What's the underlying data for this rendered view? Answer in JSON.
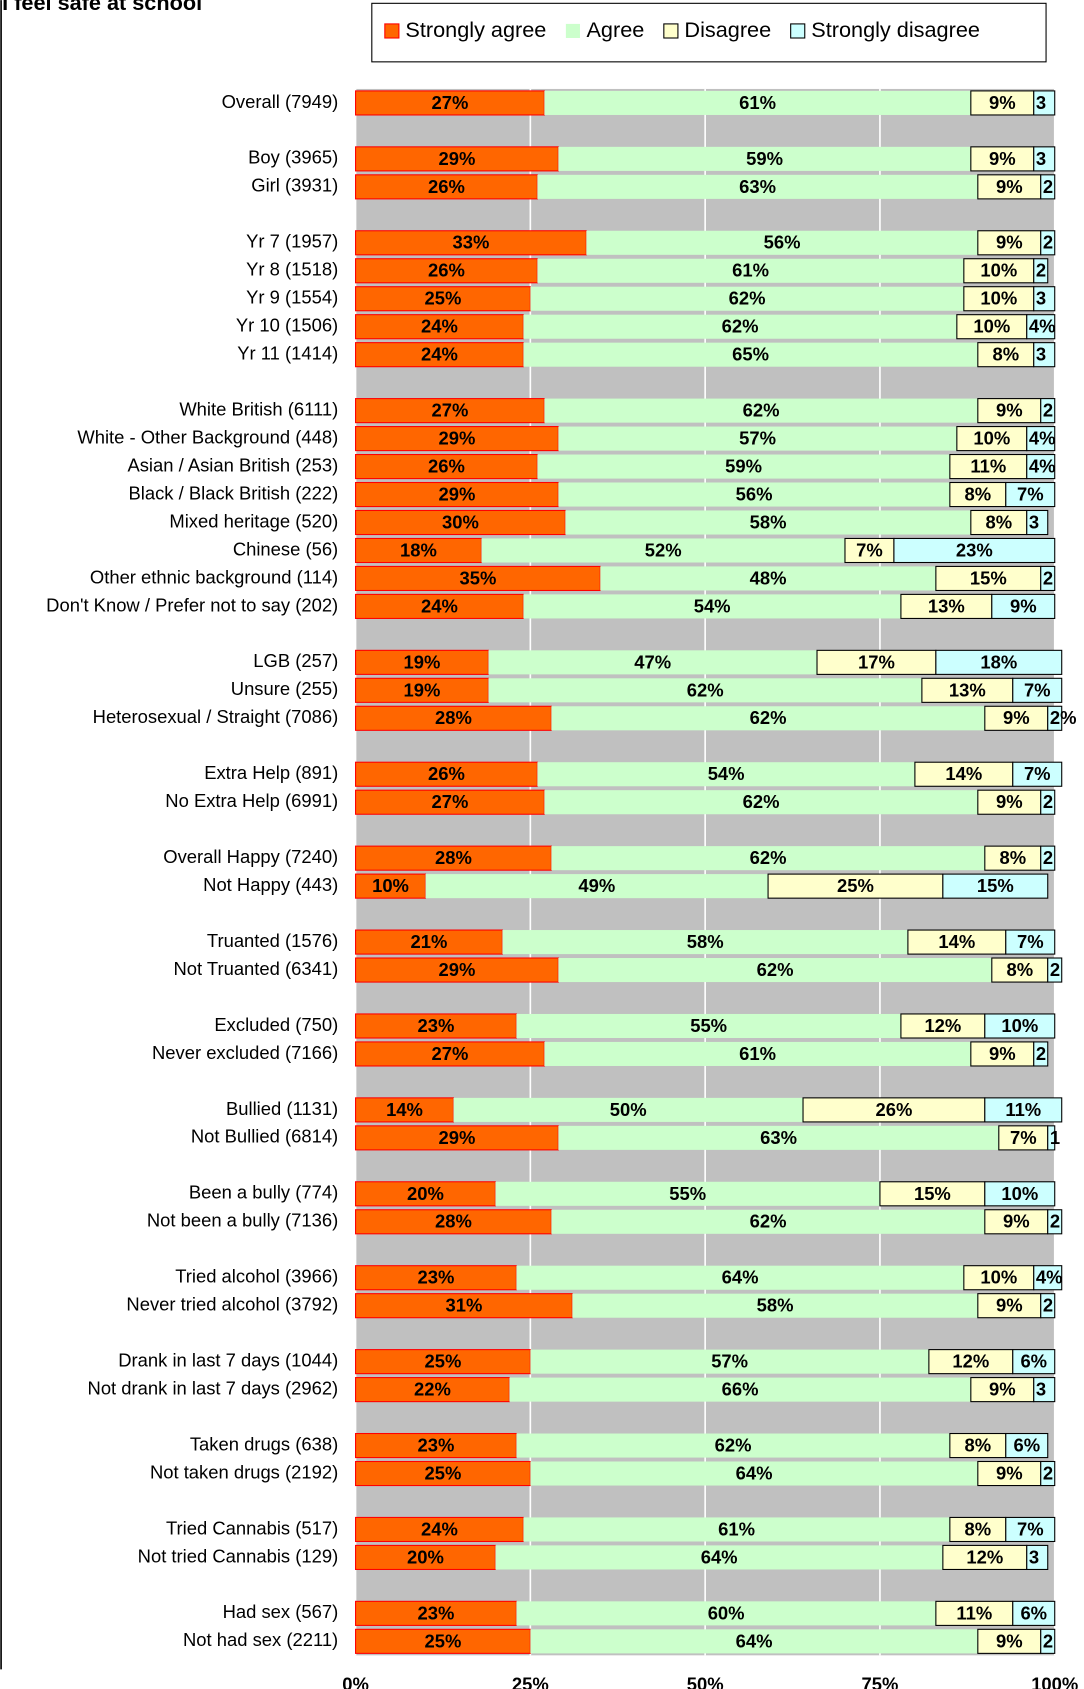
{
  "chart_data": {
    "type": "stacked-bar-horizontal",
    "title": "I feel safe at school",
    "categories": [
      "Overall (7949)",
      null,
      "Boy (3965)",
      "Girl (3931)",
      null,
      "Yr 7 (1957)",
      "Yr 8 (1518)",
      "Yr 9 (1554)",
      "Yr 10 (1506)",
      "Yr 11 (1414)",
      null,
      "White British (6111)",
      "White - Other Background (448)",
      "Asian / Asian British (253)",
      "Black / Black British (222)",
      "Mixed heritage (520)",
      "Chinese (56)",
      "Other ethnic background (114)",
      "Don't Know  / Prefer not to say (202)",
      null,
      "LGB (257)",
      "Unsure (255)",
      "Heterosexual / Straight (7086)",
      null,
      "Extra Help (891)",
      "No Extra Help (6991)",
      null,
      "Overall Happy (7240)",
      "Not Happy (443)",
      null,
      "Truanted (1576)",
      "Not Truanted (6341)",
      null,
      "Excluded (750)",
      "Never excluded (7166)",
      null,
      "Bullied (1131)",
      "Not Bullied (6814)",
      null,
      "Been a bully (774)",
      "Not been a bully (7136)",
      null,
      "Tried alcohol (3966)",
      "Never tried alcohol (3792)",
      null,
      "Drank in last 7 days (1044)",
      "Not drank in last 7 days (2962)",
      null,
      "Taken drugs (638)",
      "Not taken drugs (2192)",
      null,
      "Tried Cannabis (517)",
      "Not tried Cannabis (129)",
      null,
      "Had sex (567)",
      "Not had sex (2211)"
    ],
    "series": [
      {
        "name": "Strongly agree",
        "color": "#ff6600",
        "values": [
          27,
          null,
          29,
          26,
          null,
          33,
          26,
          25,
          24,
          24,
          null,
          27,
          29,
          26,
          29,
          30,
          18,
          35,
          24,
          null,
          19,
          19,
          28,
          null,
          26,
          27,
          null,
          28,
          10,
          null,
          21,
          29,
          null,
          23,
          27,
          null,
          14,
          29,
          null,
          20,
          28,
          null,
          23,
          31,
          null,
          25,
          22,
          null,
          23,
          25,
          null,
          24,
          20,
          null,
          23,
          25
        ],
        "value_labels": [
          "27%",
          null,
          "29%",
          "26%",
          null,
          "33%",
          "26%",
          "25%",
          "24%",
          "24%",
          null,
          "27%",
          "29%",
          "26%",
          "29%",
          "30%",
          "18%",
          "35%",
          "24%",
          null,
          "19%",
          "19%",
          "28%",
          null,
          "26%",
          "27%",
          null,
          "28%",
          "10%",
          null,
          "21%",
          "29%",
          null,
          "23%",
          "27%",
          null,
          "14%",
          "29%",
          null,
          "20%",
          "28%",
          null,
          "23%",
          "31%",
          null,
          "25%",
          "22%",
          null,
          "23%",
          "25%",
          null,
          "24%",
          "20%",
          null,
          "23%",
          "25%"
        ]
      },
      {
        "name": "Agree",
        "color": "#ccffcc",
        "values": [
          61,
          null,
          59,
          63,
          null,
          56,
          61,
          62,
          62,
          65,
          null,
          62,
          57,
          59,
          56,
          58,
          52,
          48,
          54,
          null,
          47,
          62,
          62,
          null,
          54,
          62,
          null,
          62,
          49,
          null,
          58,
          62,
          null,
          55,
          61,
          null,
          50,
          63,
          null,
          55,
          62,
          null,
          64,
          58,
          null,
          57,
          66,
          null,
          62,
          64,
          null,
          61,
          64,
          null,
          60,
          64
        ],
        "value_labels": [
          "61%",
          null,
          "59%",
          "63%",
          null,
          "56%",
          "61%",
          "62%",
          "62%",
          "65%",
          null,
          "62%",
          "57%",
          "59%",
          "56%",
          "58%",
          "52%",
          "48%",
          "54%",
          null,
          "47%",
          "62%",
          "62%",
          null,
          "54%",
          "62%",
          null,
          "62%",
          "49%",
          null,
          "58%",
          "62%",
          null,
          "55%",
          "61%",
          null,
          "50%",
          "63%",
          null,
          "55%",
          "62%",
          null,
          "64%",
          "58%",
          null,
          "57%",
          "66%",
          null,
          "62%",
          "64%",
          null,
          "61%",
          "64%",
          null,
          "60%",
          "64%"
        ]
      },
      {
        "name": "Disagree",
        "color": "#ffffcc",
        "values": [
          9,
          null,
          9,
          9,
          null,
          9,
          10,
          10,
          10,
          8,
          null,
          9,
          10,
          11,
          8,
          8,
          7,
          15,
          13,
          null,
          17,
          13,
          9,
          null,
          14,
          9,
          null,
          8,
          25,
          null,
          14,
          8,
          null,
          12,
          9,
          null,
          26,
          7,
          null,
          15,
          9,
          null,
          10,
          9,
          null,
          12,
          9,
          null,
          8,
          9,
          null,
          8,
          12,
          null,
          11,
          9
        ],
        "value_labels": [
          "9%",
          null,
          "9%",
          "9%",
          null,
          "9%",
          "10%",
          "10%",
          "10%",
          "8%",
          null,
          "9%",
          "10%",
          "11%",
          "8%",
          "8%",
          "7%",
          "15%",
          "13%",
          null,
          "17%",
          "13%",
          "9%",
          null,
          "14%",
          "9%",
          null,
          "8%",
          "25%",
          null,
          "14%",
          "8%",
          null,
          "12%",
          "9%",
          null,
          "26%",
          "7%",
          null,
          "15%",
          "9%",
          null,
          "10%",
          "9%",
          null,
          "12%",
          "9%",
          null,
          "8%",
          "9%",
          null,
          "8%",
          "12%",
          null,
          "11%",
          "9%"
        ]
      },
      {
        "name": "Strongly disagree",
        "color": "#ccffff",
        "values": [
          3,
          null,
          3,
          2,
          null,
          2,
          2,
          3,
          4,
          3,
          null,
          2,
          4,
          4,
          7,
          3,
          23,
          2,
          9,
          null,
          18,
          7,
          2,
          null,
          7,
          2,
          null,
          2,
          15,
          null,
          7,
          2,
          null,
          10,
          2,
          null,
          11,
          1,
          null,
          10,
          2,
          null,
          4,
          2,
          null,
          6,
          3,
          null,
          6,
          2,
          null,
          7,
          3,
          null,
          6,
          2
        ],
        "value_labels": [
          "3",
          null,
          "3",
          "2",
          null,
          "2",
          "2",
          "3",
          "4%",
          "3",
          null,
          "2",
          "4%",
          "4%",
          "7%",
          "3",
          "23%",
          "2",
          "9%",
          null,
          "18%",
          "7%",
          "2%",
          null,
          "7%",
          "2",
          null,
          "2",
          "15%",
          null,
          "7%",
          "2",
          null,
          "10%",
          "2",
          null,
          "11%",
          "1",
          null,
          "10%",
          "2",
          null,
          "4%",
          "2",
          null,
          "6%",
          "3",
          null,
          "6%",
          "2",
          null,
          "7%",
          "3",
          null,
          "6%",
          "2"
        ]
      }
    ],
    "xlim": [
      0,
      100
    ],
    "xticks": [
      {
        "value": 0,
        "label": "0%"
      },
      {
        "value": 25,
        "label": "25%"
      },
      {
        "value": 50,
        "label": "50%"
      },
      {
        "value": 75,
        "label": "75%"
      },
      {
        "value": 100,
        "label": "100%"
      }
    ],
    "grid": true,
    "legend": "top"
  }
}
